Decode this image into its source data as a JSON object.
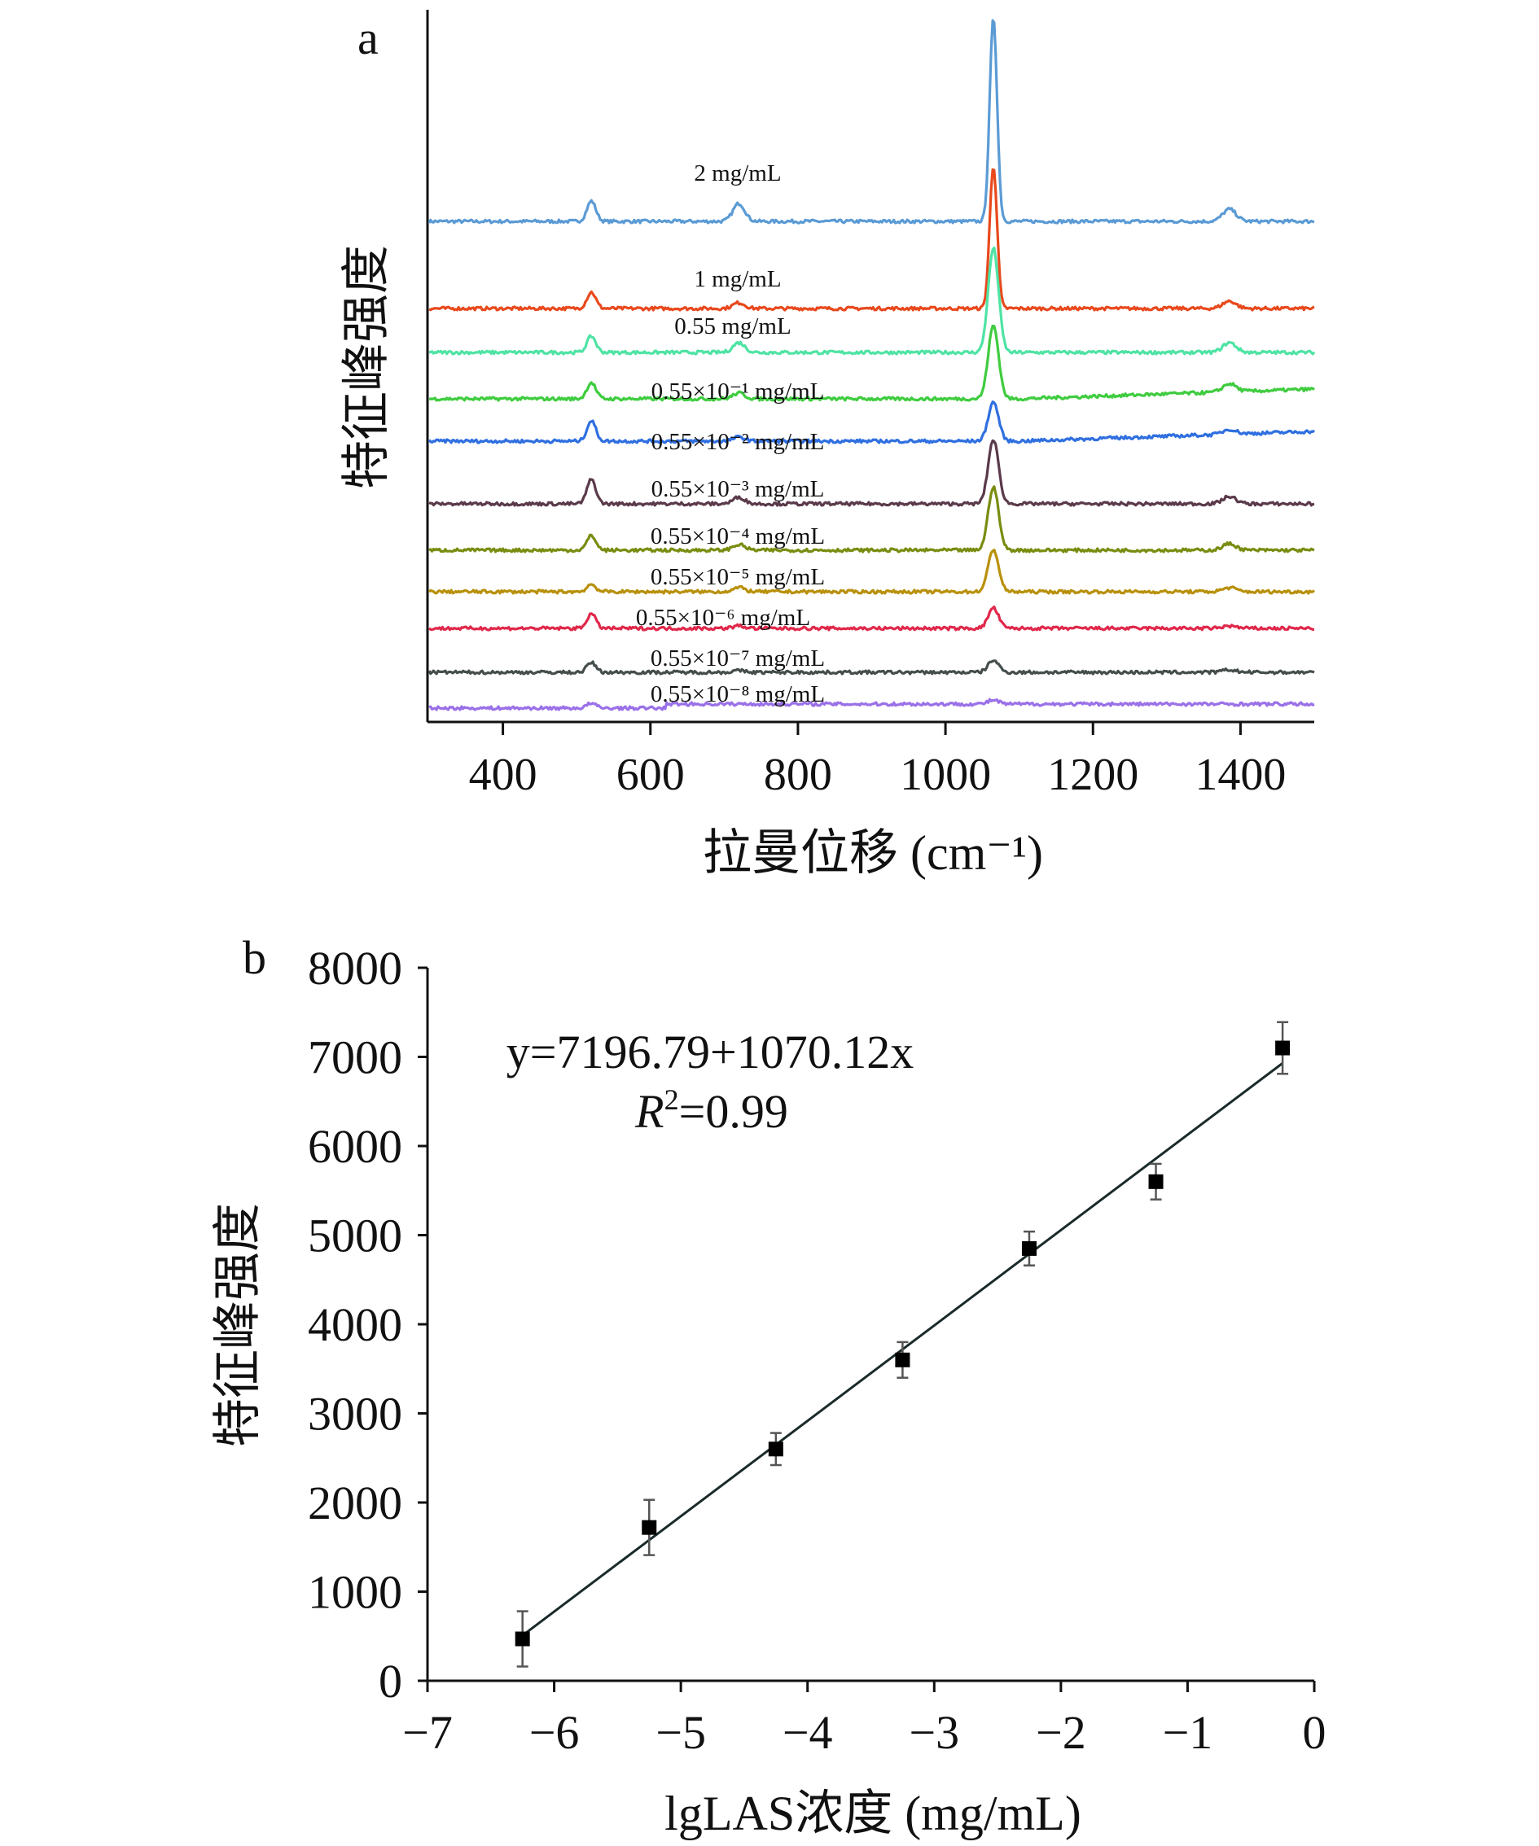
{
  "chart_data": [
    {
      "panel": "a",
      "type": "line",
      "xlabel": "拉曼位移 (cm⁻¹)",
      "ylabel": "特征峰强度",
      "xlim": [
        300,
        1500
      ],
      "xticks": [
        400,
        600,
        800,
        1000,
        1200,
        1400
      ],
      "y_units": "relative intensity (a.u., stacked, no ticks)",
      "peaks_cm": [
        520,
        720,
        1065,
        1385
      ],
      "series": [
        {
          "name": "2 mg/mL",
          "color": "#5b9bd5",
          "offset": 100,
          "peaks": [
            25,
            22,
            250,
            15
          ]
        },
        {
          "name": "1 mg/mL",
          "color": "#e8491d",
          "offset": 74,
          "peaks": [
            20,
            7,
            175,
            9
          ]
        },
        {
          "name": "0.55 mg/mL",
          "color": "#4fe3a4",
          "offset": 65,
          "peaks": [
            20,
            12,
            128,
            12
          ]
        },
        {
          "name": "0.55×10⁻¹ mg/mL",
          "color": "#3fcc3f",
          "offset": 55,
          "peaks": [
            20,
            7,
            90,
            10
          ]
        },
        {
          "name": "0.55×10⁻² mg/mL",
          "color": "#2f6fe0",
          "offset": 45,
          "peaks": [
            25,
            5,
            48,
            6
          ]
        },
        {
          "name": "0.55×10⁻³ mg/mL",
          "color": "#5a3a4a",
          "offset": 33,
          "peaks": [
            30,
            8,
            79,
            9
          ]
        },
        {
          "name": "0.55×10⁻⁴ mg/mL",
          "color": "#7a8c10",
          "offset": 23,
          "peaks": [
            18,
            7,
            78,
            8
          ]
        },
        {
          "name": "0.55×10⁻⁵ mg/mL",
          "color": "#b8900a",
          "offset": 15,
          "peaks": [
            9,
            5,
            52,
            5
          ]
        },
        {
          "name": "0.55×10⁻⁶ mg/mL",
          "color": "#e0284a",
          "offset": 8,
          "peaks": [
            18,
            3,
            25,
            3
          ]
        },
        {
          "name": "0.55×10⁻⁷ mg/mL",
          "color": "#454d4d",
          "offset": 0,
          "peaks": [
            12,
            2,
            15,
            3
          ]
        },
        {
          "name": "0.55×10⁻⁸ mg/mL",
          "color": "#9a70e8",
          "offset": -8,
          "peaks": [
            6,
            0,
            5,
            0
          ]
        }
      ]
    },
    {
      "panel": "b",
      "type": "scatter",
      "xlabel": "lgLAS浓度 (mg/mL)",
      "ylabel": "特征峰强度",
      "xlim": [
        -7,
        0
      ],
      "ylim": [
        0,
        8000
      ],
      "xticks": [
        -7,
        -6,
        -5,
        -4,
        -3,
        -2,
        -1,
        0
      ],
      "xtick_labels": [
        "−7",
        "−6",
        "−5",
        "−4",
        "−3",
        "−2",
        "−1",
        "0"
      ],
      "yticks": [
        0,
        1000,
        2000,
        3000,
        4000,
        5000,
        6000,
        7000,
        8000
      ],
      "x": [
        -6.25,
        -5.25,
        -4.25,
        -3.25,
        -2.25,
        -1.25,
        -0.25
      ],
      "y": [
        470,
        1720,
        2600,
        3600,
        4850,
        5600,
        7100
      ],
      "yerr": [
        310,
        310,
        180,
        200,
        190,
        200,
        290
      ],
      "fit": {
        "intercept": 7196.79,
        "slope": 1070.12,
        "equation": "y=7196.79+1070.12x",
        "r2_label": "R",
        "r2_sup": "2",
        "r2_value": "=0.99"
      }
    }
  ],
  "labels": {
    "panel_a": "a",
    "panel_b": "b"
  }
}
